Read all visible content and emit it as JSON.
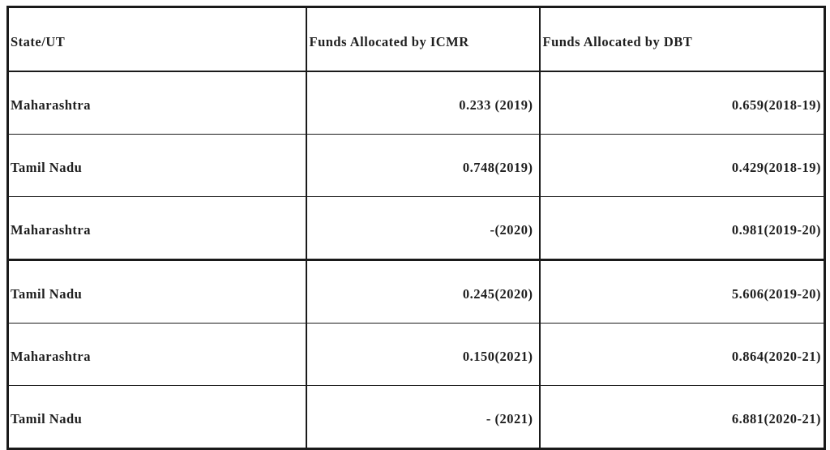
{
  "colors": {
    "background": "#ffffff",
    "border": "#1a1a1a",
    "text": "#1f1f1f"
  },
  "table": {
    "headers": [
      "State/UT",
      "Funds Allocated by ICMR",
      "Funds Allocated by DBT"
    ],
    "rows": [
      {
        "state": "Maharashtra",
        "icmr": "0.233 (2019)",
        "dbt": "0.659(2018-19)"
      },
      {
        "state": "Tamil Nadu",
        "icmr": "0.748(2019)",
        "dbt": "0.429(2018-19)"
      },
      {
        "state": "Maharashtra",
        "icmr": "-(2020)",
        "dbt": "0.981(2019-20)"
      },
      {
        "state": "Tamil Nadu",
        "icmr": "0.245(2020)",
        "dbt": "5.606(2019-20)"
      },
      {
        "state": "Maharashtra",
        "icmr": "0.150(2021)",
        "dbt": "0.864(2020-21)"
      },
      {
        "state": "Tamil Nadu",
        "icmr": "- (2021)",
        "dbt": "6.881(2020-21)"
      }
    ]
  },
  "chart_data": {
    "type": "table",
    "columns": [
      "State/UT",
      "Funds Allocated by ICMR",
      "Funds Allocated by DBT"
    ],
    "rows": [
      [
        "Maharashtra",
        "0.233 (2019)",
        "0.659(2018-19)"
      ],
      [
        "Tamil Nadu",
        "0.748(2019)",
        "0.429(2018-19)"
      ],
      [
        "Maharashtra",
        "-(2020)",
        "0.981(2019-20)"
      ],
      [
        "Tamil Nadu",
        "0.245(2020)",
        "5.606(2019-20)"
      ],
      [
        "Maharashtra",
        "0.150(2021)",
        "0.864(2020-21)"
      ],
      [
        "Tamil Nadu",
        "- (2021)",
        "6.881(2020-21)"
      ]
    ],
    "series": [
      {
        "name": "Funds Allocated by ICMR",
        "values": [
          0.233,
          0.748,
          null,
          0.245,
          0.15,
          null
        ],
        "periods": [
          "2019",
          "2019",
          "2020",
          "2020",
          "2021",
          "2021"
        ]
      },
      {
        "name": "Funds Allocated by DBT",
        "values": [
          0.659,
          0.429,
          0.981,
          5.606,
          0.864,
          6.881
        ],
        "periods": [
          "2018-19",
          "2018-19",
          "2019-20",
          "2019-20",
          "2020-21",
          "2020-21"
        ]
      }
    ]
  }
}
